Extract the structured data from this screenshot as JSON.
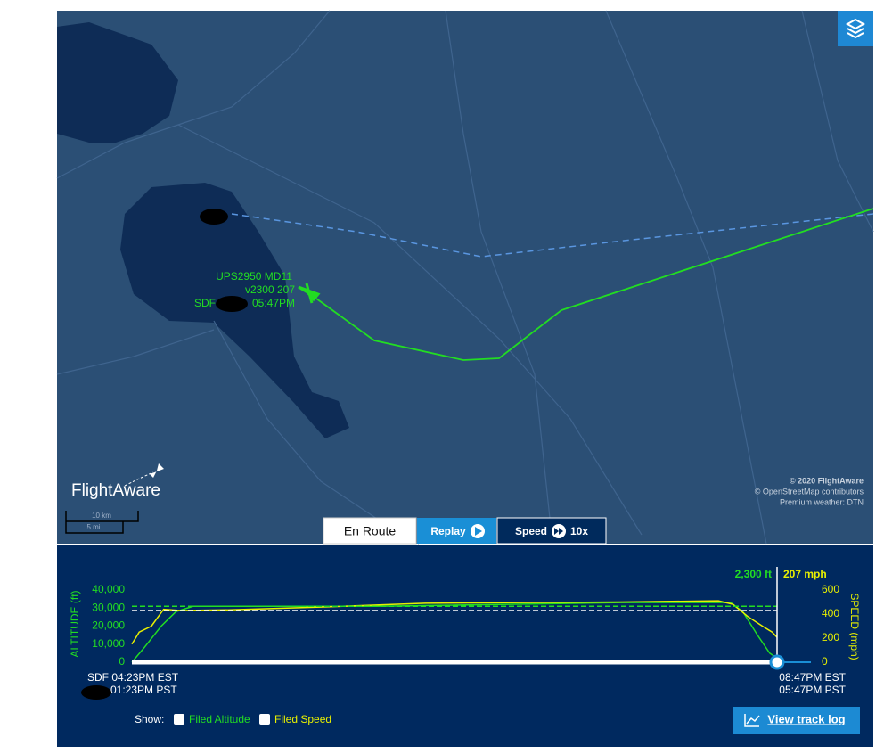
{
  "map": {
    "flight_label": {
      "callsign": "UPS2950 MD11",
      "alt_speed": "v2300 207",
      "origin": "SDF",
      "eta": "05:47PM"
    },
    "logo": "FlightAware",
    "scale": {
      "km": "10 km",
      "mi": "5 mi"
    },
    "attribution": [
      "© 2020 FlightAware",
      "© OpenStreetMap contributors",
      "Premium weather: DTN"
    ]
  },
  "tabs": {
    "en_route": "En Route",
    "replay": "Replay",
    "speed": "Speed",
    "speed_value": "10x"
  },
  "readout": {
    "altitude": "2,300 ft",
    "speed": "207 mph"
  },
  "times": {
    "start_origin": "SDF 04:23PM EST",
    "start_local": "01:23PM PST",
    "end_origin": "08:47PM EST",
    "end_local": "05:47PM PST"
  },
  "show_label": "Show:",
  "track_log": "View track log",
  "chart_data": {
    "type": "line",
    "y_label": "ALTITUDE (ft)",
    "y2_label": "SPEED (mph)",
    "xlim": [
      0,
      264
    ],
    "ylim": [
      0,
      40000
    ],
    "yticks": [
      0,
      {
        "value": 10000,
        "label": "10,000"
      },
      {
        "value": 20000,
        "label": "20,000"
      },
      {
        "value": 30000,
        "label": "30,000"
      },
      {
        "value": 40000,
        "label": "40,000"
      }
    ],
    "y2lim": [
      0,
      600
    ],
    "y2ticks": [
      0,
      200,
      400,
      600
    ],
    "series": [
      {
        "color": "#22dd22",
        "x": [
          0,
          5,
          12,
          18,
          25,
          100,
          200,
          245,
          250,
          256,
          261,
          264
        ],
        "values": [
          0,
          8000,
          20000,
          28000,
          31000,
          31000,
          33000,
          33000,
          28000,
          15000,
          5000,
          2300
        ]
      },
      {
        "color": "#e8f000",
        "axis": "y2",
        "x": [
          0,
          3,
          8,
          13,
          20,
          40,
          80,
          120,
          160,
          200,
          240,
          246,
          252,
          258,
          262,
          264
        ],
        "values": [
          150,
          250,
          300,
          440,
          430,
          435,
          460,
          490,
          495,
          500,
          510,
          480,
          380,
          300,
          250,
          207
        ]
      },
      {
        "name": "Filed Altitude",
        "color": "#22dd22",
        "dashed": true,
        "x": [
          0,
          264
        ],
        "values": [
          31000,
          31000
        ]
      },
      {
        "name": "Filed Speed",
        "color": "#ffffff",
        "axis": "y2",
        "dashed": true,
        "x": [
          0,
          264
        ],
        "values": [
          430,
          430
        ]
      }
    ]
  }
}
